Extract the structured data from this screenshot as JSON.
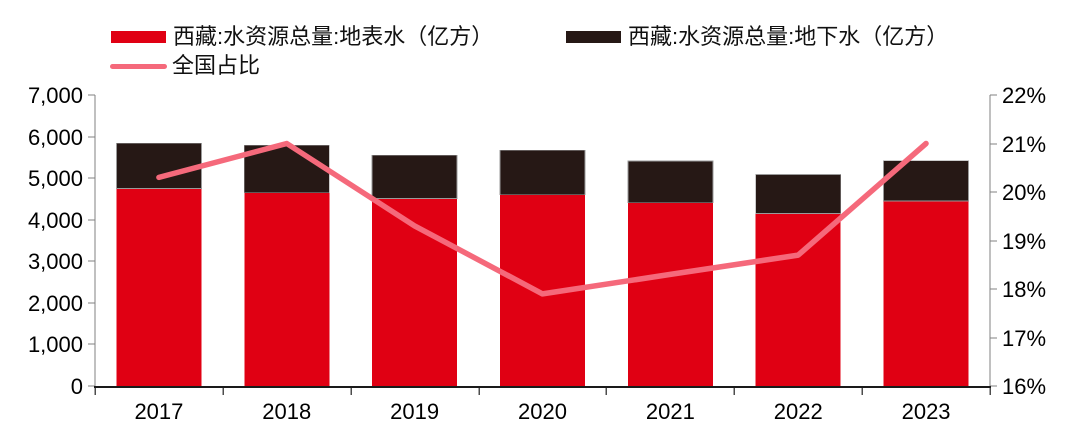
{
  "chart_data": {
    "type": "combo-bar-line",
    "categories": [
      "2017",
      "2018",
      "2019",
      "2020",
      "2021",
      "2022",
      "2023"
    ],
    "series": [
      {
        "name": "西藏:水资源总量:地表水（亿方）",
        "type": "bar",
        "stack": "water",
        "axis": "left",
        "color": "#e00013",
        "values": [
          4750,
          4650,
          4510,
          4600,
          4410,
          4150,
          4450
        ]
      },
      {
        "name": "西藏:水资源总量:地下水（亿方）",
        "type": "bar",
        "stack": "water",
        "axis": "left",
        "color": "#261815",
        "values": [
          1090,
          1140,
          1040,
          1070,
          1000,
          940,
          970
        ]
      },
      {
        "name": "全国占比",
        "type": "line",
        "axis": "right",
        "color": "#f5697b",
        "unit": "%",
        "values": [
          20.3,
          21.0,
          19.3,
          17.9,
          18.3,
          18.7,
          21.0
        ]
      }
    ],
    "left_axis": {
      "min": 0,
      "max": 7000,
      "step": 1000,
      "tick_labels": [
        "0",
        "1,000",
        "2,000",
        "3,000",
        "4,000",
        "5,000",
        "6,000",
        "7,000"
      ]
    },
    "right_axis": {
      "min": 16,
      "max": 22,
      "step": 1,
      "tick_labels": [
        "16%",
        "17%",
        "18%",
        "19%",
        "20%",
        "21%",
        "22%"
      ]
    },
    "legend_position": "top-left",
    "grid": false,
    "colors": {
      "axis_line": "#808080",
      "bottom_axis_line": "#1a1a1a",
      "tick_text": "#000000",
      "bar_outline": "#9a9a9a"
    }
  }
}
